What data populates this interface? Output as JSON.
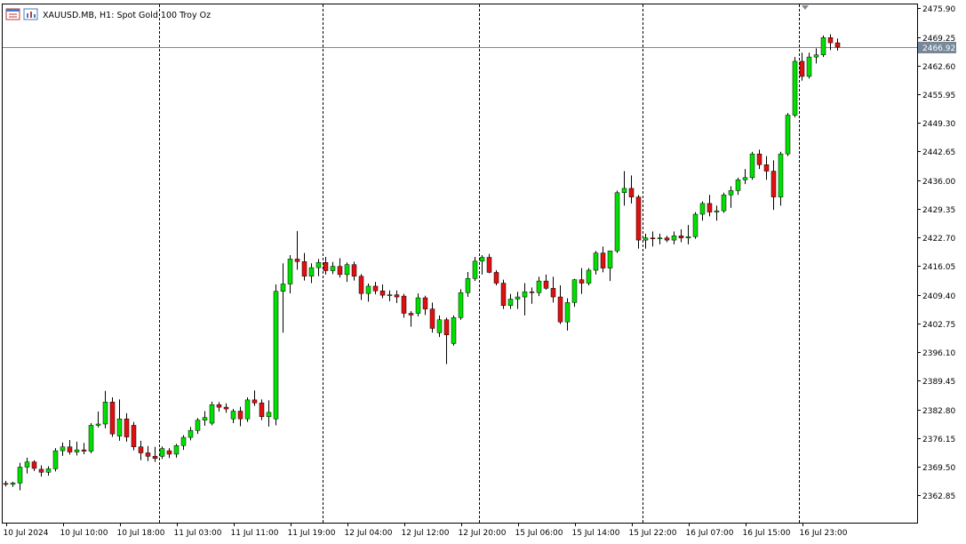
{
  "header": {
    "symbol_label": "XAUUSD.MB, H1:  Spot Gold 100 Troy Oz",
    "icon_names": [
      "chart-window-icon",
      "indicators-icon"
    ]
  },
  "colors": {
    "background": "#ffffff",
    "axis": "#000000",
    "bull": "#00e000",
    "bear": "#e01010",
    "wick": "#000000",
    "price_line": "#778899",
    "price_tag_bg": "#778899",
    "price_tag_text": "#ffffff",
    "separator": "#000000"
  },
  "chart_data": {
    "type": "candlestick",
    "title": "XAUUSD.MB, H1:  Spot Gold 100 Troy Oz",
    "xlabel": "",
    "ylabel": "",
    "ylim": [
      2356.5,
      2476.8
    ],
    "y_ticks": [
      "2475.90",
      "2469.25",
      "2462.60",
      "2455.95",
      "2449.30",
      "2442.65",
      "2436.00",
      "2429.35",
      "2422.70",
      "2416.05",
      "2409.40",
      "2402.75",
      "2396.10",
      "2389.45",
      "2382.80",
      "2376.15",
      "2369.50",
      "2362.85"
    ],
    "x_ticks": [
      {
        "label": "10 Jul 2024",
        "index": 0
      },
      {
        "label": "10 Jul 10:00",
        "index": 8
      },
      {
        "label": "10 Jul 18:00",
        "index": 16
      },
      {
        "label": "11 Jul 03:00",
        "index": 24
      },
      {
        "label": "11 Jul 11:00",
        "index": 32
      },
      {
        "label": "11 Jul 19:00",
        "index": 40
      },
      {
        "label": "12 Jul 04:00",
        "index": 48
      },
      {
        "label": "12 Jul 12:00",
        "index": 56
      },
      {
        "label": "12 Jul 20:00",
        "index": 64
      },
      {
        "label": "15 Jul 06:00",
        "index": 72
      },
      {
        "label": "15 Jul 14:00",
        "index": 80
      },
      {
        "label": "15 Jul 22:00",
        "index": 88
      },
      {
        "label": "16 Jul 07:00",
        "index": 96
      },
      {
        "label": "16 Jul 15:00",
        "index": 104
      },
      {
        "label": "16 Jul 23:00",
        "index": 112
      }
    ],
    "day_separators_after_index": [
      21,
      44,
      66,
      89,
      111
    ],
    "current_price": "2466.92",
    "current_price_value": 2466.92,
    "grid": false,
    "candles": [
      [
        2365.6,
        2366.2,
        2364.9,
        2365.4
      ],
      [
        2365.4,
        2366.0,
        2364.8,
        2365.7
      ],
      [
        2365.7,
        2370.4,
        2364.0,
        2369.4
      ],
      [
        2369.4,
        2371.6,
        2367.9,
        2370.6
      ],
      [
        2370.6,
        2371.0,
        2368.5,
        2369.1
      ],
      [
        2368.9,
        2369.8,
        2367.2,
        2368.2
      ],
      [
        2368.2,
        2369.6,
        2367.4,
        2369.0
      ],
      [
        2369.0,
        2373.8,
        2368.4,
        2373.2
      ],
      [
        2373.2,
        2375.1,
        2372.0,
        2374.1
      ],
      [
        2374.1,
        2375.7,
        2372.3,
        2372.9
      ],
      [
        2372.9,
        2375.3,
        2372.1,
        2373.4
      ],
      [
        2373.4,
        2375.0,
        2372.4,
        2373.1
      ],
      [
        2373.1,
        2379.6,
        2372.6,
        2379.1
      ],
      [
        2379.1,
        2382.3,
        2378.6,
        2379.4
      ],
      [
        2379.4,
        2387.1,
        2378.4,
        2384.5
      ],
      [
        2384.5,
        2385.6,
        2376.4,
        2377.1
      ],
      [
        2376.6,
        2385.1,
        2375.5,
        2380.6
      ],
      [
        2380.6,
        2381.9,
        2375.3,
        2376.4
      ],
      [
        2379.1,
        2379.9,
        2373.3,
        2374.1
      ],
      [
        2374.1,
        2375.5,
        2371.0,
        2372.7
      ],
      [
        2372.7,
        2374.3,
        2370.8,
        2371.9
      ],
      [
        2371.9,
        2374.1,
        2370.6,
        2371.4
      ],
      [
        2371.9,
        2374.2,
        2371.3,
        2373.7
      ],
      [
        2373.2,
        2373.8,
        2371.5,
        2372.4
      ],
      [
        2372.4,
        2374.8,
        2371.6,
        2374.4
      ],
      [
        2374.4,
        2376.8,
        2373.4,
        2376.3
      ],
      [
        2376.3,
        2378.7,
        2375.6,
        2377.9
      ],
      [
        2377.9,
        2380.8,
        2377.1,
        2380.3
      ],
      [
        2380.3,
        2382.4,
        2379.0,
        2380.9
      ],
      [
        2379.6,
        2384.6,
        2379.1,
        2383.9
      ],
      [
        2383.9,
        2384.5,
        2382.3,
        2383.3
      ],
      [
        2383.3,
        2384.2,
        2382.0,
        2382.9
      ],
      [
        2380.6,
        2382.9,
        2379.6,
        2382.4
      ],
      [
        2382.4,
        2383.4,
        2378.9,
        2380.6
      ],
      [
        2380.6,
        2385.6,
        2379.9,
        2385.0
      ],
      [
        2385.0,
        2387.2,
        2383.6,
        2384.3
      ],
      [
        2384.3,
        2385.1,
        2380.3,
        2381.1
      ],
      [
        2381.1,
        2384.9,
        2378.8,
        2382.1
      ],
      [
        2380.6,
        2411.8,
        2379.1,
        2410.2
      ],
      [
        2410.2,
        2416.7,
        2400.6,
        2411.9
      ],
      [
        2411.9,
        2418.6,
        2409.7,
        2417.7
      ],
      [
        2417.7,
        2424.2,
        2415.2,
        2417.1
      ],
      [
        2417.1,
        2419.1,
        2412.7,
        2413.7
      ],
      [
        2413.7,
        2416.7,
        2412.1,
        2415.7
      ],
      [
        2415.7,
        2417.7,
        2413.7,
        2416.9
      ],
      [
        2416.9,
        2418.2,
        2414.1,
        2415.0
      ],
      [
        2415.0,
        2417.0,
        2414.2,
        2416.0
      ],
      [
        2416.0,
        2417.9,
        2413.4,
        2414.1
      ],
      [
        2414.1,
        2416.9,
        2412.4,
        2416.4
      ],
      [
        2416.4,
        2417.1,
        2412.7,
        2413.7
      ],
      [
        2413.7,
        2414.2,
        2408.2,
        2409.7
      ],
      [
        2409.7,
        2412.0,
        2407.8,
        2411.4
      ],
      [
        2411.4,
        2412.4,
        2409.5,
        2410.3
      ],
      [
        2410.3,
        2411.8,
        2408.6,
        2409.3
      ],
      [
        2409.3,
        2410.4,
        2407.9,
        2409.4
      ],
      [
        2409.4,
        2410.4,
        2407.5,
        2408.9
      ],
      [
        2409.1,
        2409.6,
        2404.1,
        2405.1
      ],
      [
        2405.1,
        2405.6,
        2402.0,
        2404.7
      ],
      [
        2405.1,
        2409.7,
        2404.4,
        2408.7
      ],
      [
        2408.7,
        2409.2,
        2404.7,
        2406.1
      ],
      [
        2406.1,
        2407.6,
        2400.6,
        2401.6
      ],
      [
        2400.6,
        2404.6,
        2399.6,
        2403.6
      ],
      [
        2403.6,
        2404.1,
        2393.3,
        2400.1
      ],
      [
        2398.1,
        2404.6,
        2397.6,
        2404.1
      ],
      [
        2404.1,
        2410.7,
        2403.6,
        2409.9
      ],
      [
        2409.9,
        2414.7,
        2408.9,
        2413.2
      ],
      [
        2413.2,
        2418.2,
        2412.6,
        2417.2
      ],
      [
        2417.2,
        2418.6,
        2414.1,
        2418.1
      ],
      [
        2418.1,
        2418.9,
        2414.4,
        2414.6
      ],
      [
        2414.6,
        2415.1,
        2411.6,
        2412.1
      ],
      [
        2412.1,
        2412.9,
        2406.1,
        2406.9
      ],
      [
        2406.9,
        2409.6,
        2406.1,
        2408.4
      ],
      [
        2408.4,
        2410.1,
        2406.1,
        2408.9
      ],
      [
        2408.9,
        2412.1,
        2404.6,
        2410.1
      ],
      [
        2410.1,
        2411.1,
        2407.3,
        2409.9
      ],
      [
        2409.9,
        2413.6,
        2409.1,
        2412.6
      ],
      [
        2412.6,
        2414.1,
        2410.6,
        2410.9
      ],
      [
        2410.9,
        2413.6,
        2407.6,
        2408.9
      ],
      [
        2408.9,
        2411.6,
        2402.6,
        2403.1
      ],
      [
        2403.1,
        2408.6,
        2401.1,
        2407.6
      ],
      [
        2407.6,
        2413.1,
        2406.6,
        2412.9
      ],
      [
        2412.9,
        2415.6,
        2409.6,
        2412.1
      ],
      [
        2412.1,
        2415.6,
        2411.6,
        2415.1
      ],
      [
        2415.1,
        2419.6,
        2414.1,
        2419.1
      ],
      [
        2419.1,
        2420.6,
        2414.6,
        2415.6
      ],
      [
        2415.6,
        2419.6,
        2412.6,
        2419.6
      ],
      [
        2419.6,
        2433.6,
        2419.1,
        2433.1
      ],
      [
        2433.1,
        2438.1,
        2430.1,
        2434.1
      ],
      [
        2434.1,
        2437.1,
        2430.6,
        2432.1
      ],
      [
        2432.1,
        2432.6,
        2420.1,
        2422.1
      ],
      [
        2422.1,
        2423.6,
        2420.1,
        2422.6
      ],
      [
        2422.6,
        2424.1,
        2420.6,
        2422.4
      ],
      [
        2422.4,
        2423.6,
        2421.1,
        2422.6
      ],
      [
        2422.6,
        2423.1,
        2421.6,
        2422.1
      ],
      [
        2422.1,
        2424.1,
        2421.1,
        2423.1
      ],
      [
        2423.1,
        2424.6,
        2421.6,
        2422.6
      ],
      [
        2422.6,
        2425.6,
        2421.1,
        2422.9
      ],
      [
        2422.9,
        2428.6,
        2422.4,
        2428.1
      ],
      [
        2428.1,
        2431.1,
        2426.6,
        2430.6
      ],
      [
        2430.6,
        2432.6,
        2427.6,
        2428.6
      ],
      [
        2428.6,
        2430.1,
        2426.6,
        2428.9
      ],
      [
        2428.9,
        2433.1,
        2428.4,
        2432.6
      ],
      [
        2432.6,
        2434.6,
        2429.6,
        2433.6
      ],
      [
        2433.6,
        2436.6,
        2432.6,
        2436.1
      ],
      [
        2436.1,
        2438.6,
        2435.1,
        2436.6
      ],
      [
        2436.6,
        2442.6,
        2436.1,
        2442.1
      ],
      [
        2442.1,
        2443.1,
        2438.6,
        2439.6
      ],
      [
        2439.6,
        2441.6,
        2436.1,
        2438.1
      ],
      [
        2438.1,
        2440.6,
        2429.1,
        2432.1
      ],
      [
        2432.1,
        2442.6,
        2430.1,
        2442.1
      ],
      [
        2442.1,
        2451.6,
        2441.6,
        2451.1
      ],
      [
        2451.1,
        2464.6,
        2450.6,
        2463.6
      ],
      [
        2463.6,
        2465.6,
        2459.1,
        2460.1
      ],
      [
        2460.1,
        2465.6,
        2459.6,
        2464.6
      ],
      [
        2464.6,
        2466.6,
        2463.1,
        2465.1
      ],
      [
        2465.1,
        2469.6,
        2464.6,
        2469.1
      ],
      [
        2469.1,
        2469.9,
        2466.2,
        2467.9
      ],
      [
        2467.9,
        2468.9,
        2466.1,
        2466.9
      ]
    ]
  }
}
